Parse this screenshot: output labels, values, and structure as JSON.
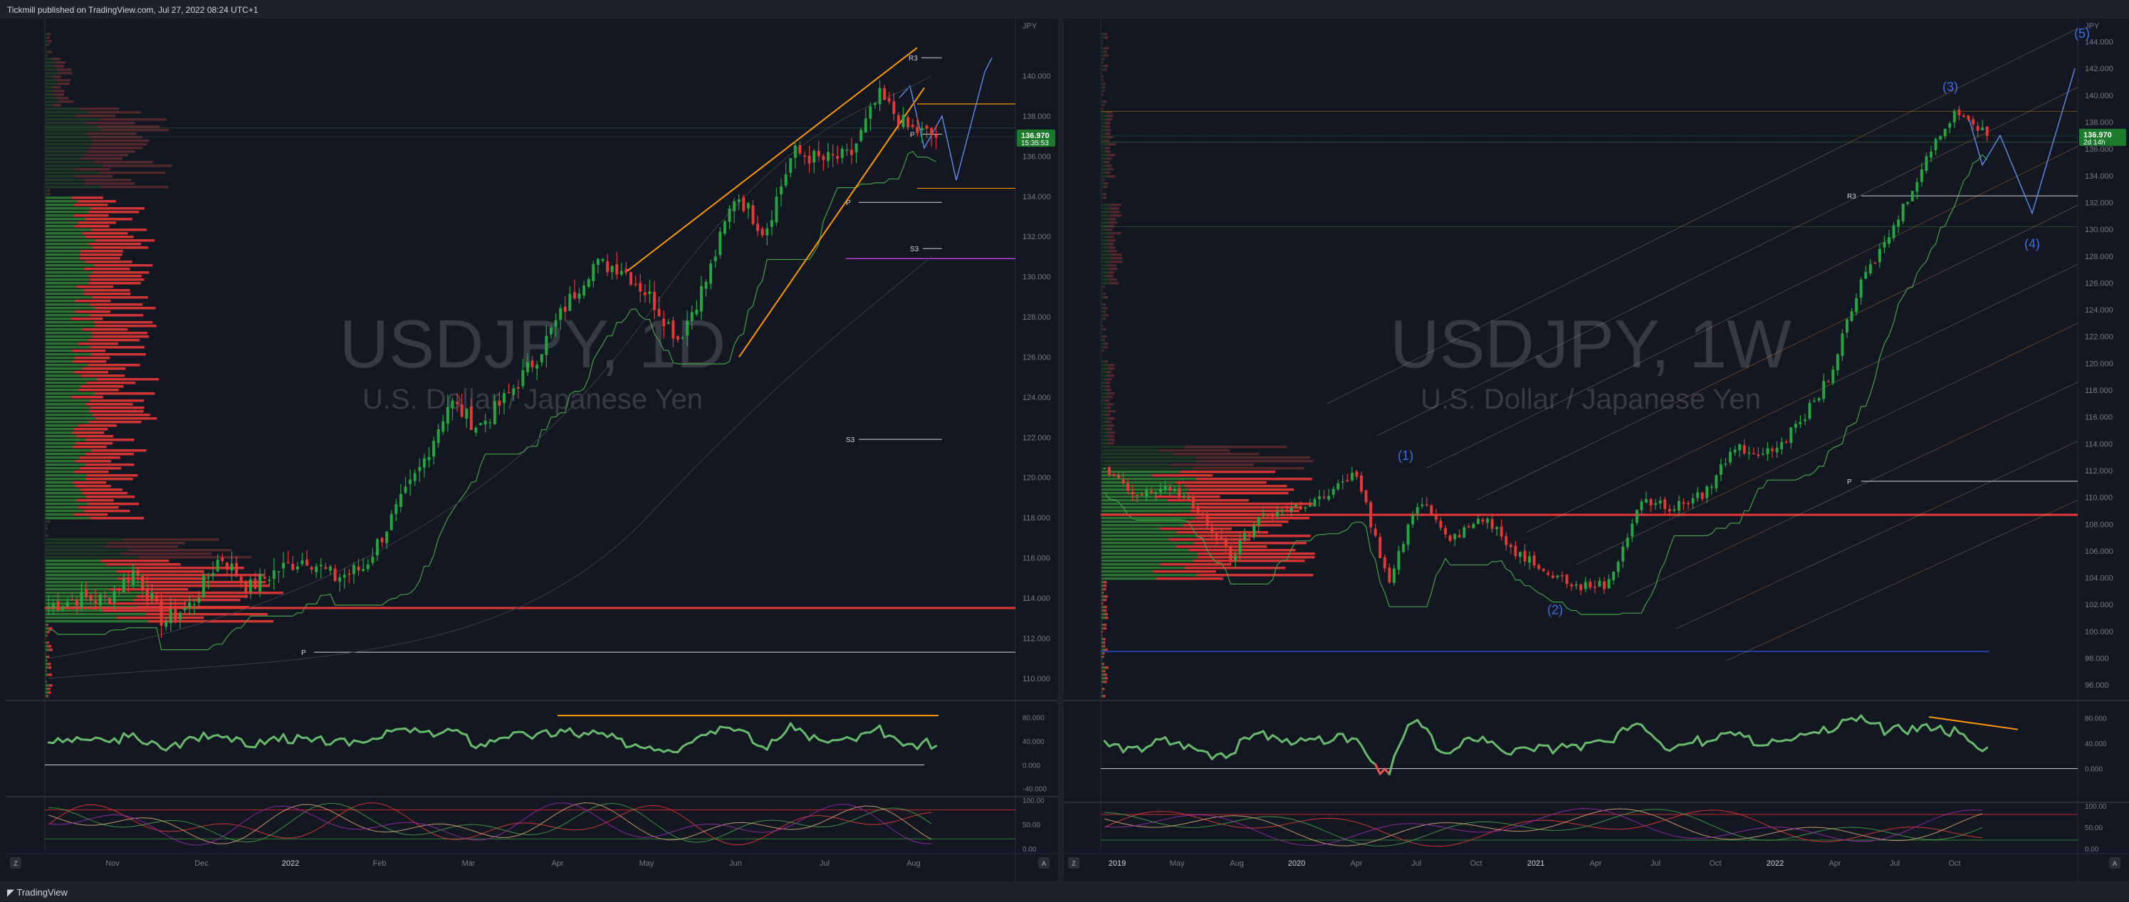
{
  "header": {
    "publish_line": "Tickmill published on TradingView.com, Jul 27, 2022 08:24 UTC+1"
  },
  "footer": {
    "logo_text": "TradingView"
  },
  "chart_data": [
    {
      "type": "candlestick",
      "symbol_watermark": "USDJPY, 1D",
      "description_watermark": "U.S. Dollar / Japanese Yen",
      "currency": "JPY",
      "price_label": "136.970",
      "countdown_label": "15:35:53",
      "y_ticks": [
        "140.000",
        "138.000",
        "136.000",
        "134.000",
        "132.000",
        "130.000",
        "128.000",
        "126.000",
        "124.000",
        "122.000",
        "120.000",
        "118.000",
        "116.000",
        "114.000",
        "112.000",
        "110.000"
      ],
      "ylim": [
        109,
        142.5
      ],
      "x_ticks": [
        "Nov",
        "Dec",
        "2022",
        "Feb",
        "Mar",
        "Apr",
        "May",
        "Jun",
        "Jul",
        "Aug"
      ],
      "pivot_labels": [
        "R3",
        "P",
        "P",
        "S3",
        "S3",
        "P"
      ],
      "close_path": [
        {
          "d": "Oct 26",
          "close": 113.6
        },
        {
          "d": "Nov 1",
          "close": 114.0
        },
        {
          "d": "Nov 10",
          "close": 113.9
        },
        {
          "d": "Nov 24",
          "close": 115.4
        },
        {
          "d": "Dec 3",
          "close": 112.8
        },
        {
          "d": "Dec 15",
          "close": 113.7
        },
        {
          "d": "Jan 4",
          "close": 116.1
        },
        {
          "d": "Jan 18",
          "close": 114.5
        },
        {
          "d": "Jan 27",
          "close": 115.4
        },
        {
          "d": "Feb 10",
          "close": 116.0
        },
        {
          "d": "Feb 24",
          "close": 115.0
        },
        {
          "d": "Mar 7",
          "close": 115.5
        },
        {
          "d": "Mar 14",
          "close": 118.0
        },
        {
          "d": "Mar 21",
          "close": 120.5
        },
        {
          "d": "Mar 28",
          "close": 123.8
        },
        {
          "d": "Apr 1",
          "close": 122.5
        },
        {
          "d": "Apr 8",
          "close": 124.0
        },
        {
          "d": "Apr 14",
          "close": 125.9
        },
        {
          "d": "Apr 20",
          "close": 128.4
        },
        {
          "d": "Apr 28",
          "close": 130.6
        },
        {
          "d": "May 9",
          "close": 130.5
        },
        {
          "d": "May 17",
          "close": 129.0
        },
        {
          "d": "May 24",
          "close": 126.9
        },
        {
          "d": "Jun 1",
          "close": 129.9
        },
        {
          "d": "Jun 8",
          "close": 134.2
        },
        {
          "d": "Jun 16",
          "close": 132.2
        },
        {
          "d": "Jun 22",
          "close": 136.2
        },
        {
          "d": "Jun 30",
          "close": 135.8
        },
        {
          "d": "Jul 7",
          "close": 136.0
        },
        {
          "d": "Jul 14",
          "close": 139.0
        },
        {
          "d": "Jul 21",
          "close": 137.4
        },
        {
          "d": "Jul 26",
          "close": 136.97
        }
      ],
      "rsi_ticks": [
        "80.000",
        "40.000",
        "0.000",
        "-40.000"
      ],
      "stoch_ticks": [
        "100.00",
        "50.00",
        "0.00"
      ]
    },
    {
      "type": "candlestick",
      "symbol_watermark": "USDJPY, 1W",
      "description_watermark": "U.S. Dollar / Japanese Yen",
      "currency": "JPY",
      "price_label": "136.970",
      "countdown_label": "2d 14h",
      "y_ticks": [
        "144.000",
        "142.000",
        "140.000",
        "138.000",
        "136.000",
        "134.000",
        "132.000",
        "130.000",
        "128.000",
        "126.000",
        "124.000",
        "122.000",
        "120.000",
        "118.000",
        "116.000",
        "114.000",
        "112.000",
        "110.000",
        "108.000",
        "106.000",
        "104.000",
        "102.000",
        "100.000",
        "98.000",
        "96.000"
      ],
      "ylim": [
        95,
        145.2
      ],
      "x_ticks": [
        "2019",
        "May",
        "Aug",
        "2020",
        "Apr",
        "Jul",
        "Oct",
        "2021",
        "Apr",
        "Jul",
        "Oct",
        "2022",
        "Apr",
        "Jul",
        "Oct"
      ],
      "wave_labels": [
        "(1)",
        "(2)",
        "(3)",
        "(4)",
        "(5)"
      ],
      "pivot_labels": [
        "R3",
        "P"
      ],
      "close_path": [
        {
          "d": "2018-12",
          "close": 112.0
        },
        {
          "d": "2019-01",
          "close": 110.0
        },
        {
          "d": "2019-03",
          "close": 110.9
        },
        {
          "d": "2019-05",
          "close": 109.0
        },
        {
          "d": "2019-08",
          "close": 105.5
        },
        {
          "d": "2019-10",
          "close": 108.7
        },
        {
          "d": "2019-12",
          "close": 109.2
        },
        {
          "d": "2020-02",
          "close": 110.0
        },
        {
          "d": "2020-02",
          "close": 111.8
        },
        {
          "d": "2020-03",
          "close": 103.5
        },
        {
          "d": "2020-03",
          "close": 110.0
        },
        {
          "d": "2020-05",
          "close": 107.0
        },
        {
          "d": "2020-06",
          "close": 108.5
        },
        {
          "d": "2020-08",
          "close": 106.0
        },
        {
          "d": "2020-10",
          "close": 104.7
        },
        {
          "d": "2020-12",
          "close": 103.3
        },
        {
          "d": "2021-01",
          "close": 103.6
        },
        {
          "d": "2021-03",
          "close": 109.8
        },
        {
          "d": "2021-05",
          "close": 109.2
        },
        {
          "d": "2021-07",
          "close": 110.2
        },
        {
          "d": "2021-10",
          "close": 113.8
        },
        {
          "d": "2021-12",
          "close": 113.2
        },
        {
          "d": "2022-01",
          "close": 115.3
        },
        {
          "d": "2022-03",
          "close": 119.0
        },
        {
          "d": "2022-04",
          "close": 126.0
        },
        {
          "d": "2022-05",
          "close": 130.0
        },
        {
          "d": "2022-06",
          "close": 135.0
        },
        {
          "d": "2022-07",
          "close": 139.0
        },
        {
          "d": "2022-07",
          "close": 136.97
        }
      ],
      "rsi_ticks": [
        "80.000",
        "40.000",
        "0.000"
      ],
      "stoch_ticks": [
        "100.00",
        "50.00",
        "0.00"
      ]
    }
  ]
}
